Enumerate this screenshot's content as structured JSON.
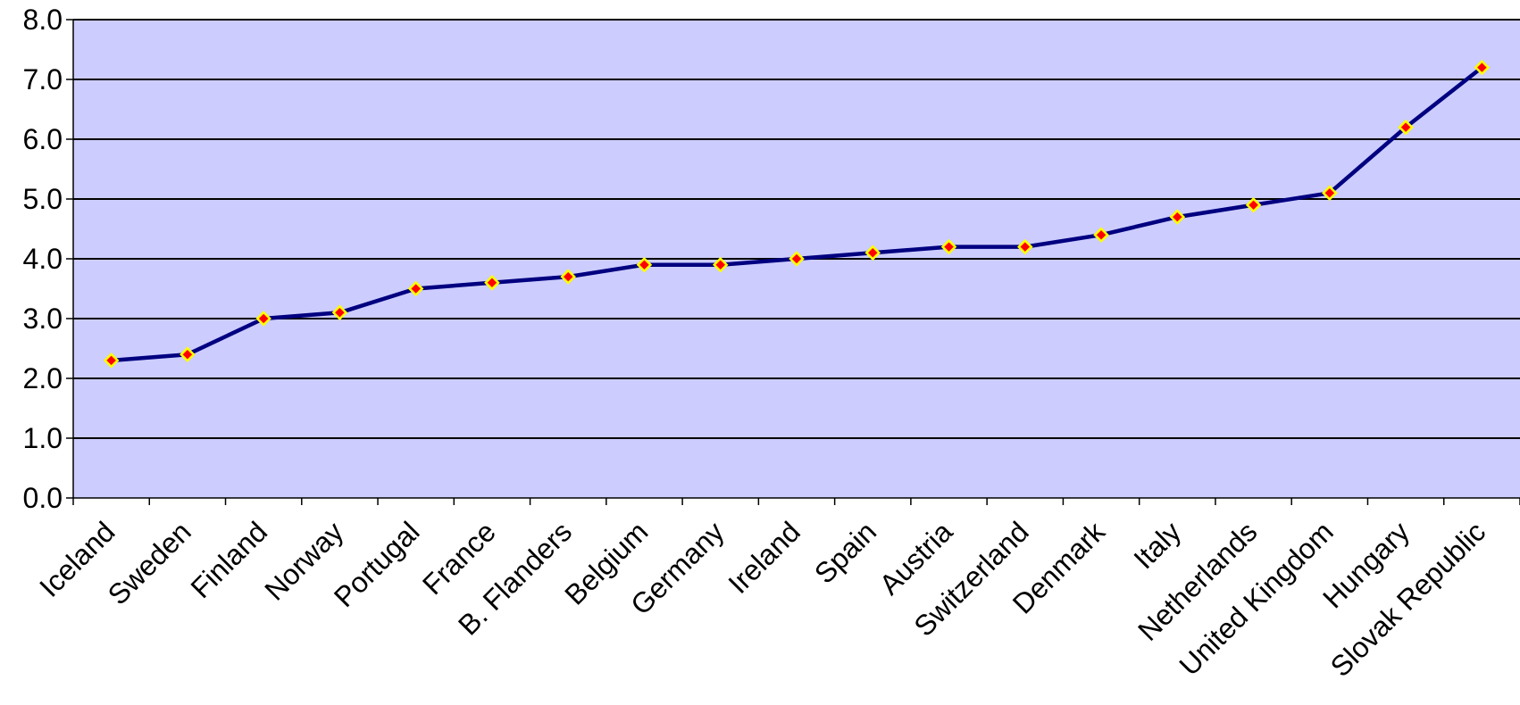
{
  "chart_data": {
    "type": "line",
    "title": "",
    "xlabel": "",
    "ylabel": "",
    "categories": [
      "Iceland",
      "Sweden",
      "Finland",
      "Norway",
      "Portugal",
      "France",
      "B. Flanders",
      "Belgium",
      "Germany",
      "Ireland",
      "Spain",
      "Austria",
      "Switzerland",
      "Denmark",
      "Italy",
      "Netherlands",
      "United Kingdom",
      "Hungary",
      "Slovak Republic"
    ],
    "series": [
      {
        "values": [
          2.3,
          2.4,
          3.0,
          3.1,
          3.5,
          3.6,
          3.7,
          3.9,
          3.9,
          4.0,
          4.1,
          4.2,
          4.2,
          4.4,
          4.7,
          4.9,
          5.1,
          6.2,
          7.2
        ]
      }
    ],
    "ylim": [
      0,
      8
    ],
    "yticks": [
      "0.0",
      "1.0",
      "2.0",
      "3.0",
      "4.0",
      "5.0",
      "6.0",
      "7.0",
      "8.0"
    ],
    "grid": "horizontal",
    "legend": "none",
    "colors": {
      "plot_background": "#ccccff",
      "line": "#000080",
      "marker_fill": "#ff0000",
      "marker_edge": "#ffff00",
      "gridline": "#000000"
    }
  }
}
